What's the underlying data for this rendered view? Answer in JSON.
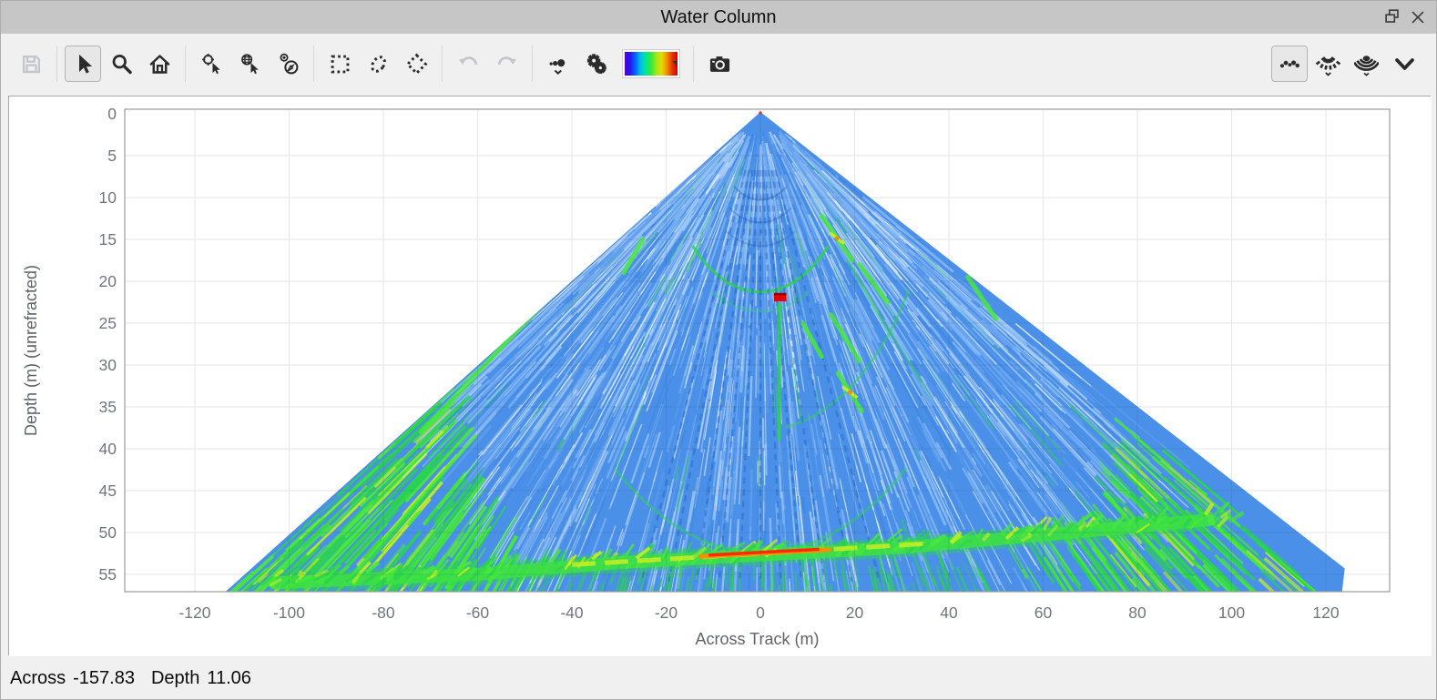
{
  "window": {
    "title": "Water Column"
  },
  "titlebar": {
    "buttons": [
      {
        "name": "float-window",
        "icon": "float-icon"
      },
      {
        "name": "close-window",
        "icon": "close-icon"
      }
    ]
  },
  "toolbar": {
    "groups": [
      {
        "buttons": [
          {
            "name": "save",
            "icon": "save-icon",
            "state": "disabled"
          }
        ]
      },
      {
        "buttons": [
          {
            "name": "select-pointer",
            "icon": "pointer-icon",
            "state": "selected"
          },
          {
            "name": "zoom",
            "icon": "magnifier-icon",
            "state": "normal"
          },
          {
            "name": "zoom-extents",
            "icon": "home-icon",
            "state": "normal"
          }
        ]
      },
      {
        "buttons": [
          {
            "name": "center-on-cursor",
            "icon": "crosshair-cursor-icon",
            "state": "normal"
          },
          {
            "name": "geo-pick",
            "icon": "globe-cursor-icon",
            "state": "normal"
          },
          {
            "name": "orient-view",
            "icon": "compass-cursor-icon",
            "state": "normal"
          }
        ]
      },
      {
        "buttons": [
          {
            "name": "rectangle-select",
            "icon": "rectangle-select-icon",
            "state": "normal"
          },
          {
            "name": "ellipse-select",
            "icon": "ellipse-select-icon",
            "state": "normal"
          },
          {
            "name": "polygon-select",
            "icon": "polygon-select-icon",
            "state": "normal"
          }
        ]
      },
      {
        "buttons": [
          {
            "name": "undo",
            "icon": "undo-icon",
            "state": "disabled"
          },
          {
            "name": "redo",
            "icon": "redo-icon",
            "state": "disabled"
          }
        ]
      },
      {
        "buttons": [
          {
            "name": "point-size",
            "icon": "point-size-icon",
            "state": "normal",
            "dropdown": true
          },
          {
            "name": "display-settings",
            "icon": "gears-icon",
            "state": "normal"
          },
          {
            "name": "colormap",
            "icon": "colormap-swatch",
            "state": "normal",
            "swatch": true
          }
        ]
      },
      {
        "buttons": [
          {
            "name": "snapshot",
            "icon": "camera-icon",
            "state": "normal"
          }
        ]
      }
    ],
    "right_buttons": [
      {
        "name": "points-view",
        "icon": "points-arc-icon",
        "state": "selected"
      },
      {
        "name": "beams-view",
        "icon": "beam-fan-icon",
        "state": "normal",
        "dropdown": true
      },
      {
        "name": "fan-view",
        "icon": "stacked-arcs-icon",
        "state": "normal",
        "dropdown": true
      },
      {
        "name": "more-tools",
        "icon": "chevron-down-icon",
        "state": "normal"
      }
    ],
    "colormap_gradient": [
      "#5a00d8",
      "#2414f0",
      "#0064f8",
      "#00c0e8",
      "#00e890",
      "#38e838",
      "#a0e818",
      "#e8d800",
      "#f09000",
      "#e83000",
      "#d80000"
    ]
  },
  "chart_data": {
    "type": "heatmap",
    "title": "",
    "xlabel": "Across Track (m)",
    "ylabel": "Depth (m) (unrefracted)",
    "x_ticks": [
      -120,
      -100,
      -80,
      -60,
      -40,
      -20,
      0,
      20,
      40,
      60,
      80,
      100,
      120
    ],
    "y_ticks": [
      0,
      5,
      10,
      15,
      20,
      25,
      30,
      35,
      40,
      45,
      50,
      55
    ],
    "xlim": [
      -134.9,
      133.5
    ],
    "ylim": [
      -0.5,
      57.1
    ],
    "grid": true,
    "fan": {
      "apex": {
        "across": 0,
        "depth": 0
      },
      "max_range_m": 57.6,
      "port_bottom_across": -113.5,
      "starboard_corner": {
        "across": 124,
        "depth": 54.3
      },
      "base_color": "#4a90e8",
      "streak_colors": [
        "#6fa9f2",
        "#8abcf6",
        "#a9cdf9",
        "#3f86e2",
        "#5d9cee"
      ],
      "white_streak": "rgba(255,255,255,0.55)",
      "green": "#2bd44d",
      "green_bright": "#49e93c",
      "yellow": "#c8ee24",
      "orange": "#ff8c00",
      "red": "#ff2a00",
      "dark_beam": "rgba(30,90,190,0.38)",
      "range_rings_m": [
        21.5,
        23.8,
        38.0,
        52.6
      ],
      "nadir_dark_rings_m": [
        10.5,
        13.2,
        16.0
      ],
      "nadir_beam_across": [
        -26,
        -20,
        -14,
        -9,
        -4.5,
        0,
        4.5,
        9,
        14,
        20,
        26
      ],
      "seafloor": {
        "nadir_depth": 52.7,
        "profile": [
          {
            "across": -103,
            "depth": 56.0
          },
          {
            "across": -60,
            "depth": 55.0
          },
          {
            "across": -30,
            "depth": 53.6
          },
          {
            "across": 0,
            "depth": 52.7
          },
          {
            "across": 30,
            "depth": 51.8
          },
          {
            "across": 62,
            "depth": 50.2
          },
          {
            "across": 95,
            "depth": 48.5
          }
        ],
        "yellow_span": [
          -40,
          35
        ],
        "orange_span": [
          -13,
          15
        ],
        "red_span": [
          -11,
          12.5
        ]
      },
      "port_wedge": {
        "across_min": -113.5,
        "across_max": -48,
        "frac_at_max": 0.92,
        "frac_at_edge": 0.52
      },
      "starboard_wedge": {
        "across_min": 58,
        "across_max": 124,
        "frac_at_min": 0.9,
        "frac_at_edge": 0.6
      },
      "echo_features": [
        {
          "type": "target",
          "across": 4.2,
          "depth": 21.9,
          "w": 2.6,
          "h": 1.0
        },
        {
          "type": "trail",
          "across": 4.0,
          "depth1": 22.6,
          "depth2": 39.0
        },
        {
          "type": "streak",
          "x1": 13,
          "y1": 12.2,
          "x2": 19.5,
          "y2": 17.5,
          "hot": true
        },
        {
          "type": "streak",
          "x1": 21,
          "y1": 18.0,
          "x2": 27,
          "y2": 22.5,
          "hot": false
        },
        {
          "type": "streak",
          "x1": 15,
          "y1": 24.0,
          "x2": 21,
          "y2": 29.5,
          "hot": false
        },
        {
          "type": "streak",
          "x1": 16.5,
          "y1": 31.0,
          "x2": 21.5,
          "y2": 35.5,
          "hot": true
        },
        {
          "type": "streak",
          "x1": 9,
          "y1": 25.0,
          "x2": 13,
          "y2": 29.0,
          "hot": false
        },
        {
          "type": "streak",
          "x1": -45,
          "y1": 22.0,
          "x2": -72,
          "y2": 38.0,
          "hot": false
        },
        {
          "type": "streak",
          "x1": 44,
          "y1": 19.5,
          "x2": 50,
          "y2": 24.5,
          "hot": false
        },
        {
          "type": "streak",
          "x1": -25,
          "y1": 15.0,
          "x2": -29,
          "y2": 19.0,
          "hot": false
        }
      ]
    }
  },
  "status": {
    "across_label": "Across",
    "across_value": "-157.83",
    "depth_label": "Depth",
    "depth_value": "11.06"
  }
}
